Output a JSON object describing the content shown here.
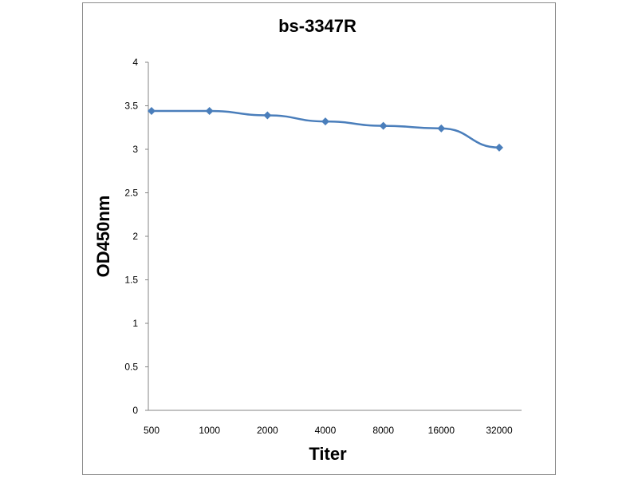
{
  "chart_data": {
    "type": "line",
    "title": "bs-3347R",
    "xlabel": "Titer",
    "ylabel": "OD450nm",
    "categories": [
      "500",
      "1000",
      "2000",
      "4000",
      "8000",
      "16000",
      "32000"
    ],
    "series": [
      {
        "values": [
          3.44,
          3.44,
          3.39,
          3.32,
          3.27,
          3.24,
          3.02
        ],
        "color": "#4a7ebb"
      }
    ],
    "ylim": [
      0,
      4
    ],
    "yticks": [
      "0",
      "0.5",
      "1",
      "1.5",
      "2",
      "2.5",
      "3",
      "3.5",
      "4"
    ],
    "grid": false,
    "legend": "none"
  }
}
